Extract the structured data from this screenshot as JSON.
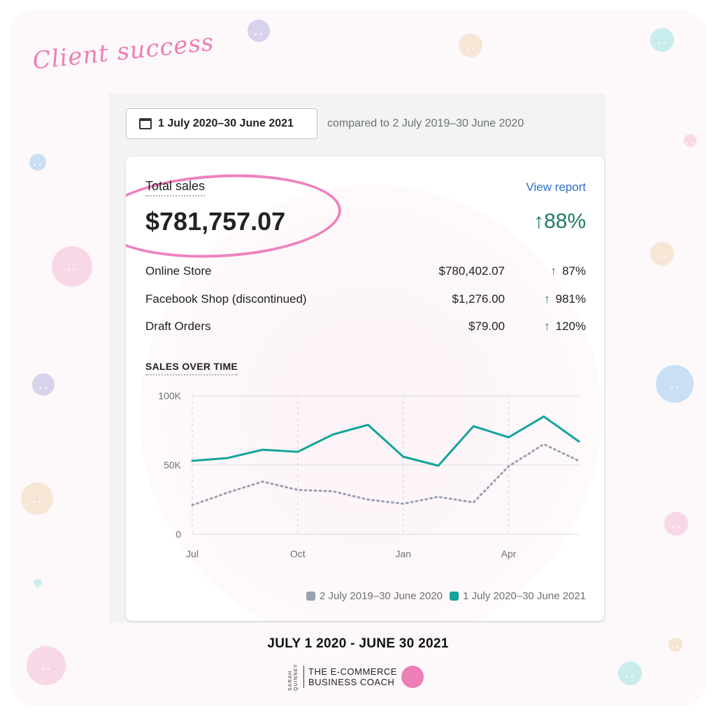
{
  "header": {
    "script_title": "Client success"
  },
  "date_range": {
    "label": "1 July 2020–30 June 2021",
    "compared_to": "compared to 2 July 2019–30 June 2020"
  },
  "summary": {
    "title": "Total sales",
    "view_report": "View report",
    "total": "$781,757.07",
    "change": "88%"
  },
  "breakdown": [
    {
      "name": "Online Store",
      "value": "$780,402.07",
      "pct": "87%"
    },
    {
      "name": "Facebook Shop (discontinued)",
      "value": "$1,276.00",
      "pct": "981%"
    },
    {
      "name": "Draft Orders",
      "value": "$79.00",
      "pct": "120%"
    }
  ],
  "sales_over_time_label": "SALES OVER TIME",
  "chart_data": {
    "type": "line",
    "x": [
      0,
      1,
      2,
      3,
      4,
      5,
      6,
      7,
      8,
      9,
      10,
      11
    ],
    "x_ticks": [
      {
        "i": 0,
        "label": "Jul"
      },
      {
        "i": 3,
        "label": "Oct"
      },
      {
        "i": 6,
        "label": "Jan"
      },
      {
        "i": 9,
        "label": "Apr"
      }
    ],
    "y_ticks": [
      {
        "v": 0,
        "label": "0"
      },
      {
        "v": 50000,
        "label": "50K"
      },
      {
        "v": 100000,
        "label": "100K"
      }
    ],
    "ylim": [
      0,
      100000
    ],
    "series": [
      {
        "name": "2 July 2019–30 June 2020",
        "color": "#9aa0b0",
        "style": "dotted",
        "values": [
          21000,
          30000,
          38000,
          32000,
          31000,
          25000,
          22000,
          27000,
          23000,
          49000,
          65000,
          53000
        ]
      },
      {
        "name": "1 July 2020–30 June 2021",
        "color": "#13a39a",
        "style": "solid",
        "values": [
          53000,
          55000,
          61000,
          59500,
          72000,
          79000,
          56000,
          49500,
          78000,
          70000,
          85000,
          67000
        ]
      }
    ],
    "grid": true,
    "legend_position": "bottom-right"
  },
  "footer": {
    "caption": "JULY 1 2020 - JUNE 30 2021",
    "brand_small": "SARAH QUINNEY",
    "brand_line1": "THE E-COMMERCE",
    "brand_line2": "BUSINESS COACH"
  }
}
